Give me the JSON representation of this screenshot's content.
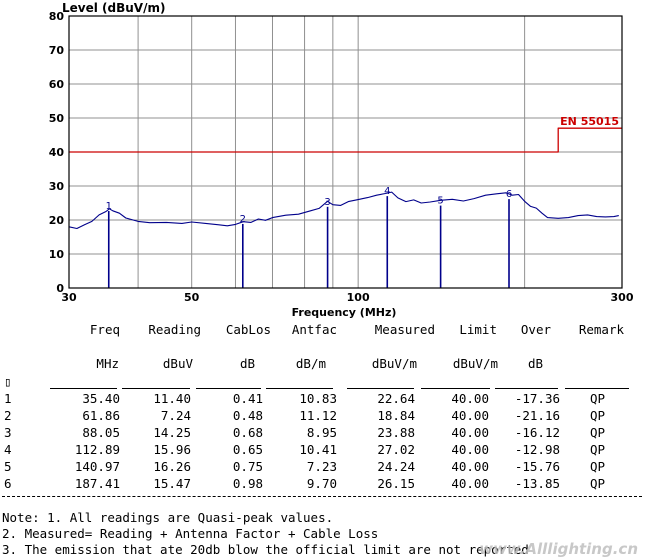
{
  "chart_data": {
    "type": "line",
    "ylabel": "Level (dBuV/m)",
    "xlabel": "Frequency (MHz)",
    "xscale": "log",
    "xlim": [
      30,
      300
    ],
    "ylim": [
      0,
      80
    ],
    "x_ticks": [
      30,
      50,
      100,
      300
    ],
    "y_ticks": [
      0,
      10,
      20,
      30,
      40,
      50,
      60,
      70,
      80
    ],
    "grid": true,
    "series": [
      {
        "style": "trace",
        "color": "#00008b",
        "points": [
          [
            30,
            18
          ],
          [
            31,
            17.5
          ],
          [
            32,
            18.6
          ],
          [
            33,
            19.6
          ],
          [
            34,
            21.5
          ],
          [
            35,
            22.5
          ],
          [
            35.5,
            23.3
          ],
          [
            36,
            22.7
          ],
          [
            37,
            22
          ],
          [
            38,
            20.6
          ],
          [
            40,
            19.6
          ],
          [
            42,
            19.2
          ],
          [
            45,
            19.3
          ],
          [
            48,
            19
          ],
          [
            50,
            19.4
          ],
          [
            53,
            19
          ],
          [
            56,
            18.6
          ],
          [
            58,
            18.3
          ],
          [
            60,
            18.7
          ],
          [
            62,
            19.5
          ],
          [
            64,
            19.3
          ],
          [
            66,
            20.3
          ],
          [
            68,
            19.9
          ],
          [
            70,
            20.7
          ],
          [
            74,
            21.4
          ],
          [
            78,
            21.7
          ],
          [
            82,
            22.7
          ],
          [
            85,
            23.4
          ],
          [
            88,
            25.5
          ],
          [
            90,
            24.5
          ],
          [
            93,
            24.3
          ],
          [
            96,
            25.4
          ],
          [
            100,
            26
          ],
          [
            104,
            26.6
          ],
          [
            108,
            27.3
          ],
          [
            112,
            27.8
          ],
          [
            115,
            28.2
          ],
          [
            118,
            26.5
          ],
          [
            122,
            25.4
          ],
          [
            126,
            25.9
          ],
          [
            130,
            25
          ],
          [
            135,
            25.3
          ],
          [
            141,
            25.8
          ],
          [
            148,
            26.1
          ],
          [
            155,
            25.6
          ],
          [
            162,
            26.3
          ],
          [
            170,
            27.3
          ],
          [
            178,
            27.7
          ],
          [
            185,
            28
          ],
          [
            190,
            27.3
          ],
          [
            195,
            27.5
          ],
          [
            200,
            25.5
          ],
          [
            205,
            24
          ],
          [
            210,
            23.5
          ],
          [
            215,
            22
          ],
          [
            220,
            20.7
          ],
          [
            230,
            20.5
          ],
          [
            240,
            20.7
          ],
          [
            250,
            21.3
          ],
          [
            260,
            21.5
          ],
          [
            270,
            21
          ],
          [
            280,
            20.9
          ],
          [
            290,
            21
          ],
          [
            296,
            21.3
          ]
        ]
      },
      {
        "style": "limit",
        "color": "#cc0000",
        "name": "EN 55015",
        "points": [
          [
            30,
            40
          ],
          [
            230,
            40
          ],
          [
            230,
            47
          ],
          [
            300,
            47
          ]
        ]
      }
    ],
    "markers": [
      {
        "id": "1",
        "x": 35.4,
        "y": 22.64
      },
      {
        "id": "2",
        "x": 61.86,
        "y": 18.84
      },
      {
        "id": "3",
        "x": 88.05,
        "y": 23.88
      },
      {
        "id": "4",
        "x": 112.89,
        "y": 27.02
      },
      {
        "id": "5",
        "x": 140.97,
        "y": 24.24
      },
      {
        "id": "6",
        "x": 187.41,
        "y": 26.15
      }
    ]
  },
  "table": {
    "headers": [
      "Freq",
      "Reading",
      "CabLos",
      "Antfac",
      "Measured",
      "Limit",
      "Over",
      "Remark"
    ],
    "units": [
      "MHz",
      "dBuV",
      "dB",
      "dB/m",
      "dBuV/m",
      "dBuV/m",
      "dB",
      ""
    ],
    "row_marker": "▯",
    "rows": [
      {
        "no": "1",
        "freq": "35.40",
        "reading": "11.40",
        "cablos": "0.41",
        "antfac": "10.83",
        "measured": "22.64",
        "limit": "40.00",
        "over": "-17.36",
        "remark": "QP"
      },
      {
        "no": "2",
        "freq": "61.86",
        "reading": "7.24",
        "cablos": "0.48",
        "antfac": "11.12",
        "measured": "18.84",
        "limit": "40.00",
        "over": "-21.16",
        "remark": "QP"
      },
      {
        "no": "3",
        "freq": "88.05",
        "reading": "14.25",
        "cablos": "0.68",
        "antfac": "8.95",
        "measured": "23.88",
        "limit": "40.00",
        "over": "-16.12",
        "remark": "QP"
      },
      {
        "no": "4",
        "freq": "112.89",
        "reading": "15.96",
        "cablos": "0.65",
        "antfac": "10.41",
        "measured": "27.02",
        "limit": "40.00",
        "over": "-12.98",
        "remark": "QP"
      },
      {
        "no": "5",
        "freq": "140.97",
        "reading": "16.26",
        "cablos": "0.75",
        "antfac": "7.23",
        "measured": "24.24",
        "limit": "40.00",
        "over": "-15.76",
        "remark": "QP"
      },
      {
        "no": "6",
        "freq": "187.41",
        "reading": "15.47",
        "cablos": "0.98",
        "antfac": "9.70",
        "measured": "26.15",
        "limit": "40.00",
        "over": "-13.85",
        "remark": "QP"
      }
    ]
  },
  "notes": [
    "Note: 1. All readings are Quasi-peak values.",
    "2. Measured= Reading + Antenna Factor + Cable Loss",
    "3. The emission that ate 20db blow the official limit are not reported"
  ],
  "watermark": "www.Alllighting.cn"
}
